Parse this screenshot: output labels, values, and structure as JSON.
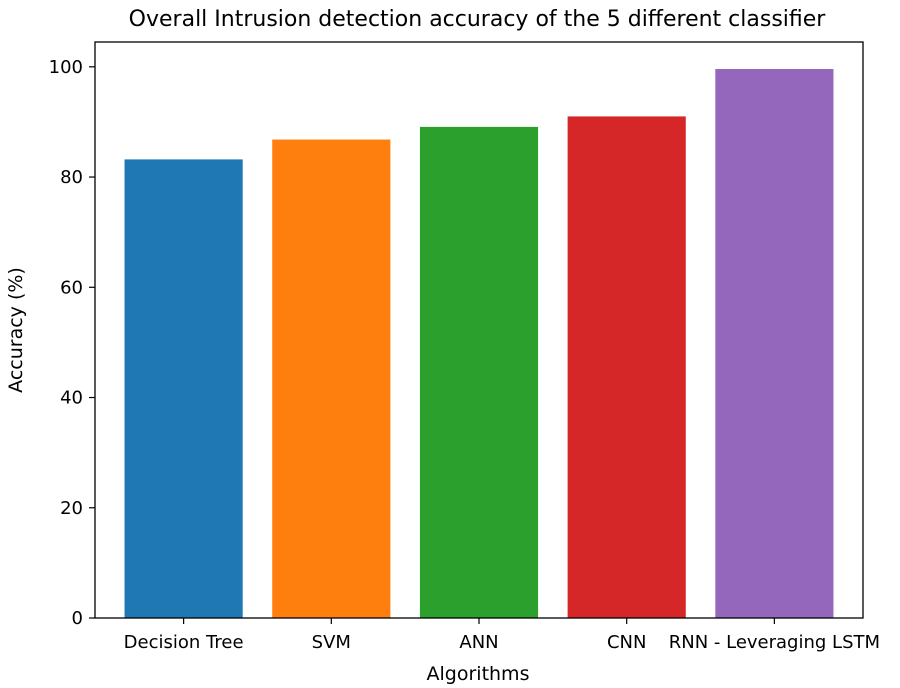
{
  "chart_data": {
    "type": "bar",
    "title": "Overall Intrusion detection accuracy of the 5 different classifier",
    "xlabel": "Algorithms",
    "ylabel": "Accuracy (%)",
    "categories": [
      "Decision Tree",
      "SVM",
      "ANN",
      "CNN",
      "RNN - Leveraging LSTM"
    ],
    "values": [
      83.2,
      86.8,
      89.1,
      91.0,
      99.6
    ],
    "colors": [
      "#1f77b4",
      "#ff7f0e",
      "#2ca02c",
      "#d62728",
      "#9467bd"
    ],
    "ylim": [
      0,
      104.5
    ],
    "yticks": [
      0,
      20,
      40,
      60,
      80,
      100
    ],
    "grid": false,
    "legend": false
  }
}
